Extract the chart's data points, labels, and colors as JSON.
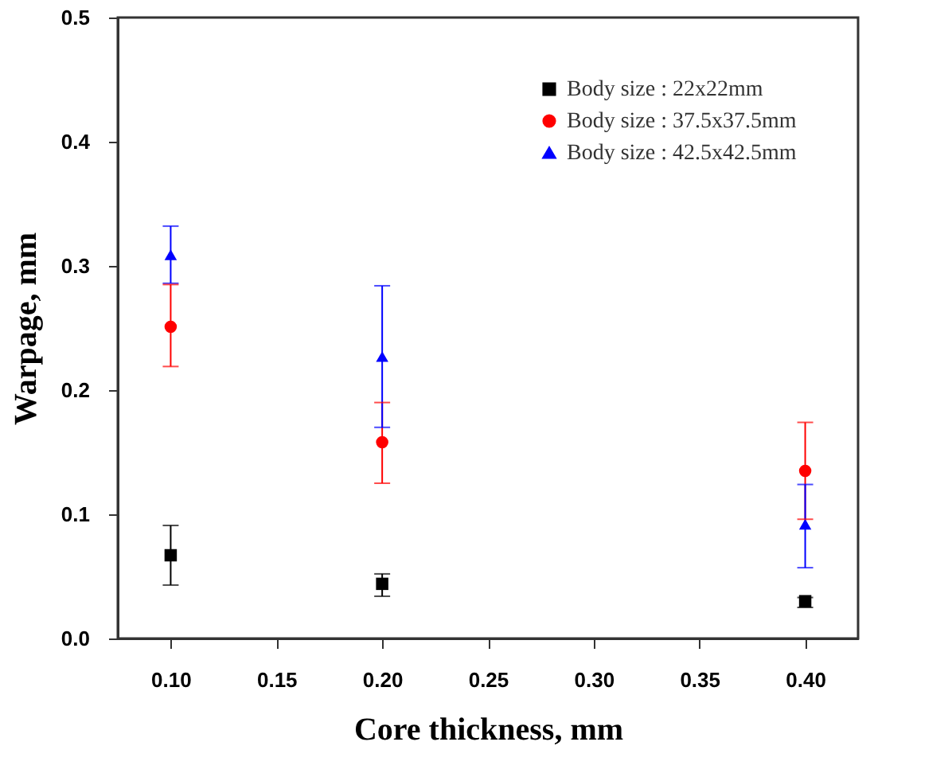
{
  "chart_data": {
    "type": "scatter",
    "xlabel": "Core thickness, mm",
    "ylabel": "Warpage, mm",
    "x": [
      0.1,
      0.2,
      0.4
    ],
    "xlim": [
      0.075,
      0.425
    ],
    "xticks": [
      {
        "value": 0.1,
        "label": "0.10"
      },
      {
        "value": 0.15,
        "label": "0.15"
      },
      {
        "value": 0.2,
        "label": "0.20"
      },
      {
        "value": 0.25,
        "label": "0.25"
      },
      {
        "value": 0.3,
        "label": "0.30"
      },
      {
        "value": 0.35,
        "label": "0.35"
      },
      {
        "value": 0.4,
        "label": "0.40"
      }
    ],
    "ylim": [
      0,
      0.5
    ],
    "yticks": [
      {
        "value": 0,
        "label": "0.0"
      },
      0.1,
      0.2,
      0.3,
      0.4,
      0.5
    ],
    "legend": "top right",
    "grid": false,
    "series": [
      {
        "name": "Body size : 22x22mm",
        "color": "#000000",
        "marker": "square",
        "values": [
          0.067,
          0.044,
          0.03
        ],
        "errors": [
          [
            0.043,
            0.091
          ],
          [
            0.034,
            0.052
          ],
          [
            0.025,
            0.033
          ]
        ]
      },
      {
        "name": "Body size : 37.5x37.5mm",
        "color": "#ff0000",
        "marker": "circle",
        "values": [
          0.251,
          0.158,
          0.135
        ],
        "errors": [
          [
            0.219,
            0.285
          ],
          [
            0.125,
            0.19
          ],
          0.039
        ]
      },
      {
        "name": "Body size : 42.5x42.5mm",
        "color": "#0000ff",
        "marker": "triangle",
        "values": [
          0.309,
          0.227,
          0.092
        ],
        "errors": [
          0.023,
          0.057,
          [
            0.057,
            0.124
          ]
        ]
      }
    ]
  }
}
